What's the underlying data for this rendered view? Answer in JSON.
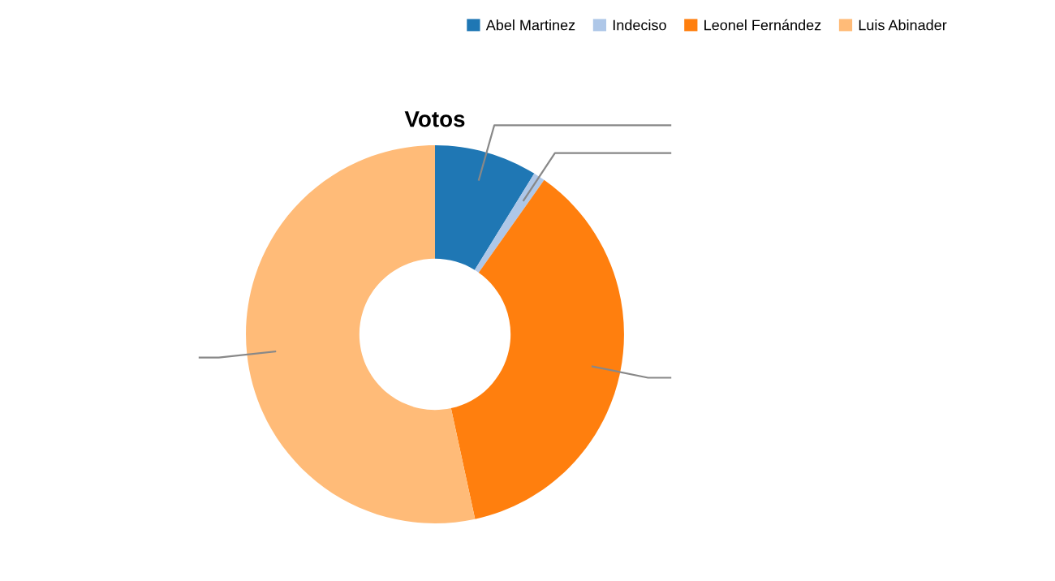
{
  "chart_data": {
    "type": "donut",
    "title": "Votos",
    "categories": [
      "Abel Martinez",
      "Indeciso",
      "Leonel Fernández",
      "Luis Abinader"
    ],
    "values": [
      8.8,
      1.0,
      36.8,
      53.4
    ],
    "colors": [
      "#1f77b4",
      "#aec7e8",
      "#ff7f0e",
      "#ffbb78"
    ],
    "legend": "top right"
  }
}
